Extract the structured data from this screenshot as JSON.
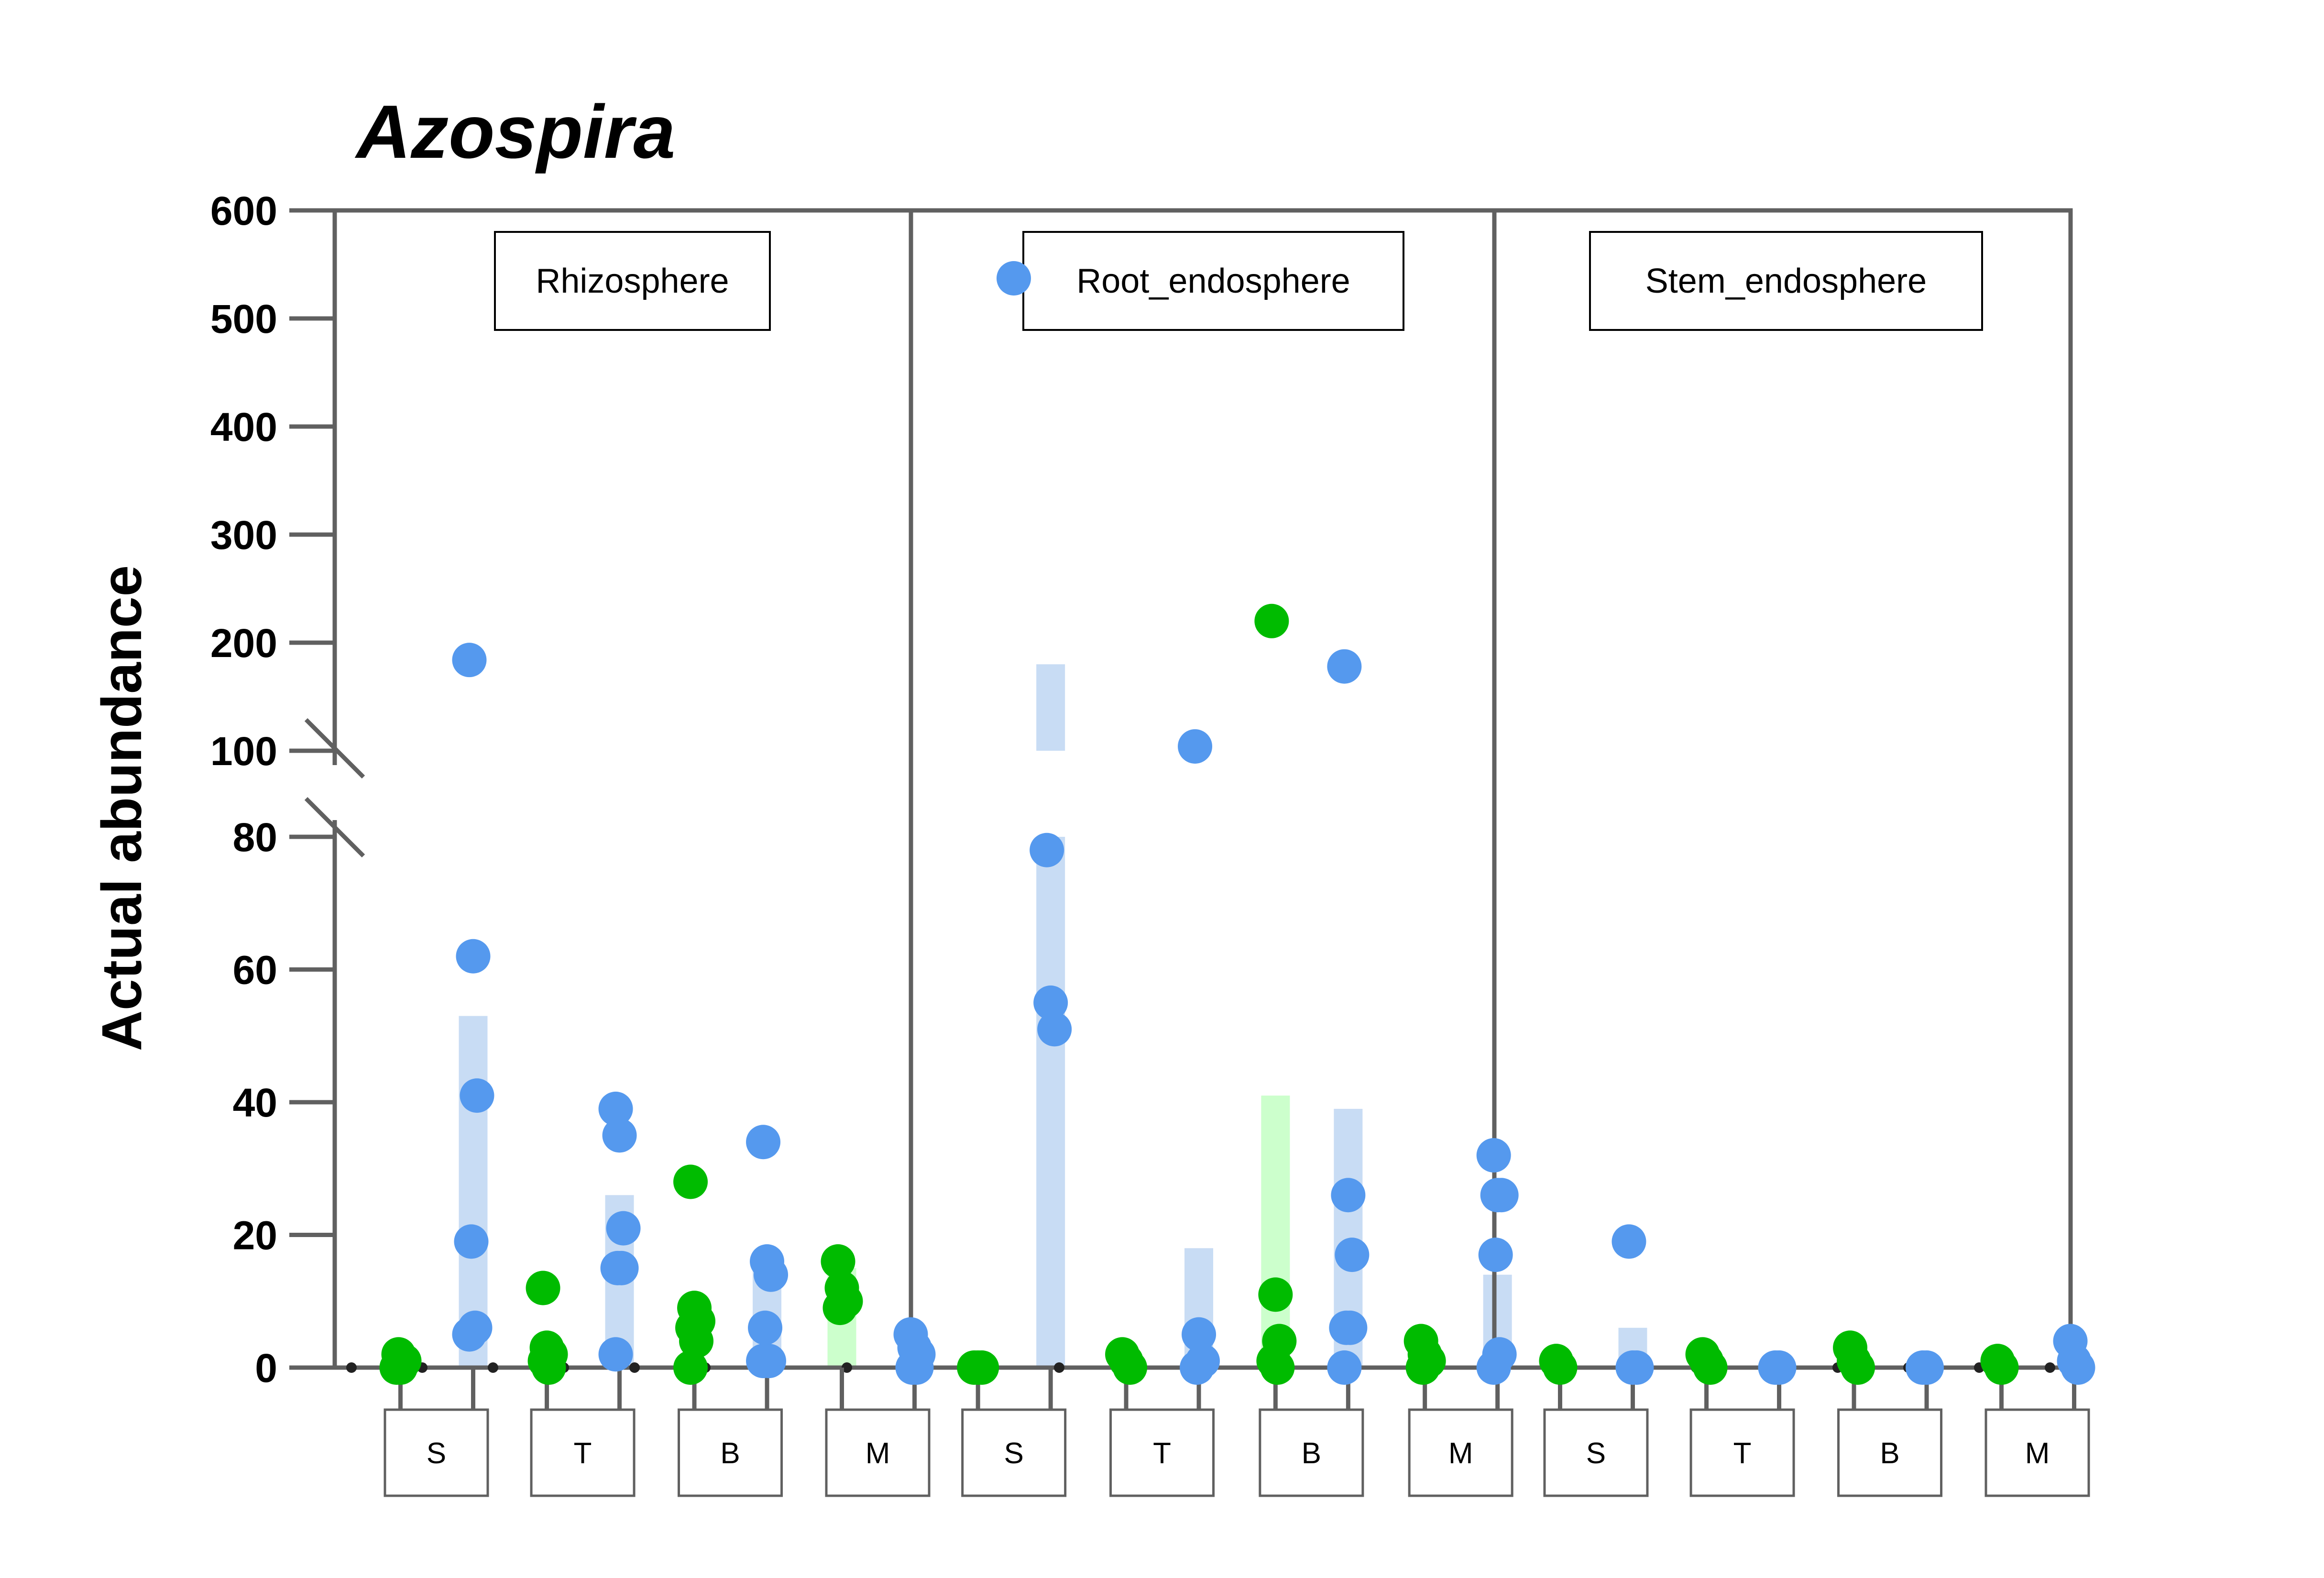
{
  "chart_data": {
    "type": "scatter",
    "title": "Azospira",
    "ylabel": "Actual abundance",
    "ylim": [
      0,
      600
    ],
    "yticks": [
      "0",
      "20",
      "40",
      "60",
      "80",
      "100",
      "200",
      "300",
      "400",
      "500",
      "600"
    ],
    "axis_break": [
      80,
      100
    ],
    "panels": [
      "Rhizosphere",
      "Root_endosphere",
      "Stem_endosphere"
    ],
    "categories": [
      "S",
      "T",
      "B",
      "M"
    ],
    "colors": {
      "green": "#00bb00",
      "blue": "#5599ee",
      "bar_green": "#ccffcc",
      "bar_blue": "#c8dcf4"
    },
    "groups": [
      {
        "panel": 0,
        "cat": 0,
        "series": "green",
        "points": [
          0,
          0,
          1,
          2
        ],
        "bar": null
      },
      {
        "panel": 0,
        "cat": 0,
        "series": "blue",
        "points": [
          184,
          62,
          41,
          19,
          6,
          5
        ],
        "bar": [
          0,
          53
        ]
      },
      {
        "panel": 0,
        "cat": 1,
        "series": "green",
        "points": [
          12,
          3,
          2,
          1,
          0
        ],
        "bar": null
      },
      {
        "panel": 0,
        "cat": 1,
        "series": "blue",
        "points": [
          39,
          35,
          21,
          15,
          15,
          2
        ],
        "bar": [
          0,
          26
        ]
      },
      {
        "panel": 0,
        "cat": 2,
        "series": "green",
        "points": [
          28,
          9,
          7,
          6,
          4,
          0
        ],
        "bar": null
      },
      {
        "panel": 0,
        "cat": 2,
        "series": "blue",
        "points": [
          34,
          16,
          14,
          6,
          1,
          1
        ],
        "bar": [
          0,
          17
        ]
      },
      {
        "panel": 0,
        "cat": 3,
        "series": "green",
        "points": [
          16,
          12,
          10,
          9
        ],
        "bar": [
          0,
          15
        ]
      },
      {
        "panel": 0,
        "cat": 3,
        "series": "blue",
        "points": [
          5,
          3,
          2,
          0,
          0
        ],
        "bar": null
      },
      {
        "panel": 1,
        "cat": 0,
        "series": "green",
        "points": [
          0,
          0,
          0
        ],
        "bar": null
      },
      {
        "panel": 1,
        "cat": 0,
        "series": "blue",
        "points": [
          78,
          55,
          51
        ],
        "bar": [
          0,
          180
        ]
      },
      {
        "panel": 1,
        "cat": 1,
        "series": "green",
        "points": [
          2,
          1,
          0
        ],
        "bar": null
      },
      {
        "panel": 1,
        "cat": 1,
        "series": "blue",
        "points": [
          104,
          5,
          1,
          0
        ],
        "bar": [
          0,
          18
        ]
      },
      {
        "panel": 1,
        "cat": 2,
        "series": "green",
        "points": [
          220,
          11,
          4,
          1,
          0
        ],
        "bar": [
          0,
          41
        ]
      },
      {
        "panel": 1,
        "cat": 2,
        "series": "blue",
        "points": [
          178,
          26,
          17,
          6,
          6,
          0
        ],
        "bar": [
          0,
          39
        ]
      },
      {
        "panel": 1,
        "cat": 3,
        "series": "green",
        "points": [
          4,
          2,
          1,
          0
        ],
        "bar": null
      },
      {
        "panel": 1,
        "cat": 3,
        "series": "blue",
        "points": [
          32,
          26,
          26,
          17,
          2,
          0
        ],
        "bar": [
          0,
          14
        ]
      },
      {
        "panel": 2,
        "cat": 0,
        "series": "green",
        "points": [
          1,
          0
        ],
        "bar": null
      },
      {
        "panel": 2,
        "cat": 0,
        "series": "blue",
        "points": [
          19,
          0,
          0
        ],
        "bar": [
          0,
          6
        ]
      },
      {
        "panel": 2,
        "cat": 1,
        "series": "green",
        "points": [
          2,
          1,
          0
        ],
        "bar": null
      },
      {
        "panel": 2,
        "cat": 1,
        "series": "blue",
        "points": [
          0,
          0
        ],
        "bar": null
      },
      {
        "panel": 2,
        "cat": 2,
        "series": "green",
        "points": [
          3,
          1,
          0
        ],
        "bar": null
      },
      {
        "panel": 2,
        "cat": 2,
        "series": "blue",
        "points": [
          0,
          0
        ],
        "bar": null
      },
      {
        "panel": 2,
        "cat": 3,
        "series": "green",
        "points": [
          1,
          0
        ],
        "bar": null
      },
      {
        "panel": 2,
        "cat": 3,
        "series": "blue",
        "points": [
          4,
          1,
          0
        ],
        "bar": null
      }
    ],
    "legend_symbol": {
      "panel": 1,
      "series": "blue"
    }
  }
}
